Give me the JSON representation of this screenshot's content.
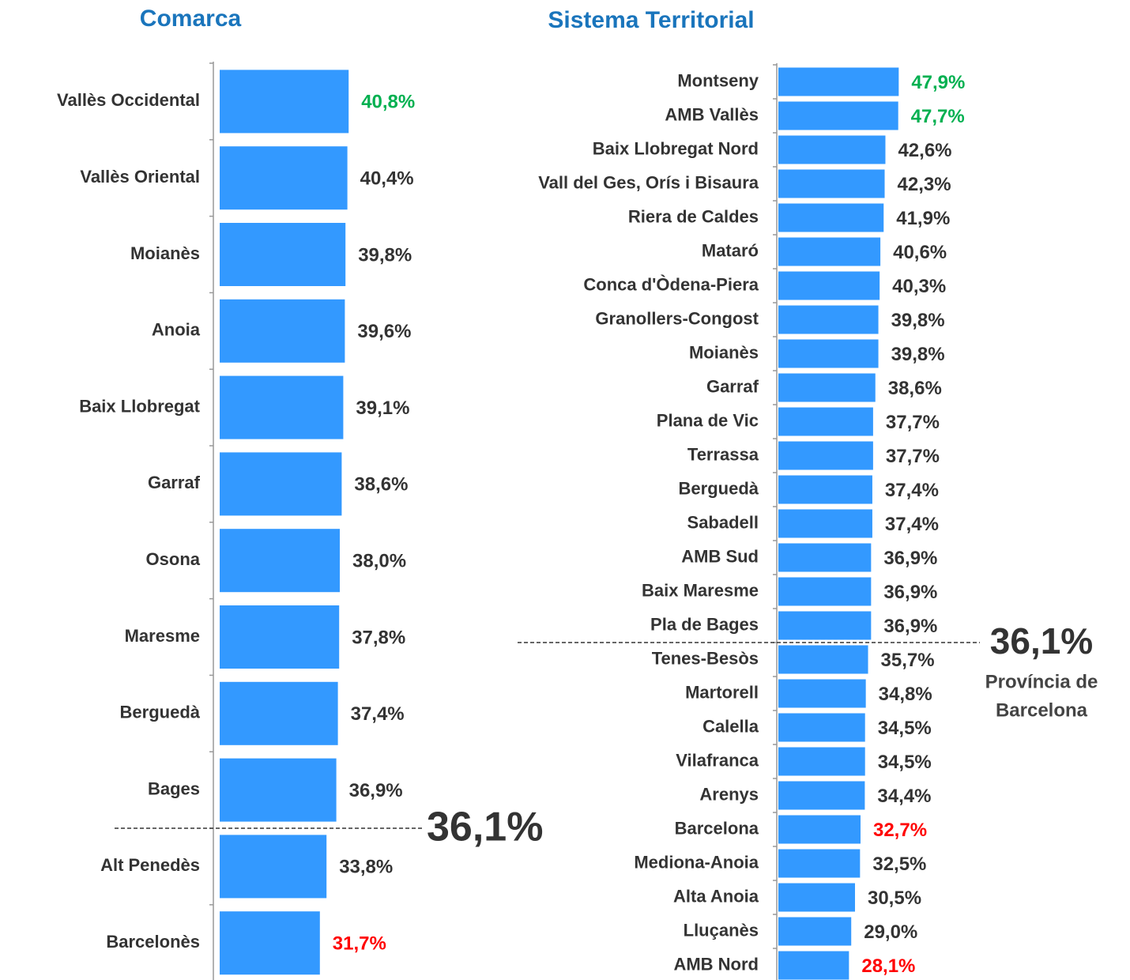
{
  "chart_data": [
    {
      "type": "bar",
      "orientation": "horizontal",
      "title": "Comarca",
      "color": "#3399ff",
      "xlim": [
        0,
        50
      ],
      "categories": [
        "Vallès Occidental",
        "Vallès Oriental",
        "Moianès",
        "Anoia",
        "Baix Llobregat",
        "Garraf",
        "Osona",
        "Maresme",
        "Berguedà",
        "Bages",
        "Alt Penedès",
        "Barcelonès"
      ],
      "values": [
        40.8,
        40.4,
        39.8,
        39.6,
        39.1,
        38.6,
        38.0,
        37.8,
        37.4,
        36.9,
        33.8,
        31.7
      ],
      "value_labels": [
        "40,8%",
        "40,4%",
        "39,8%",
        "39,6%",
        "39,1%",
        "38,6%",
        "38,0%",
        "37,8%",
        "37,4%",
        "36,9%",
        "33,8%",
        "31,7%"
      ],
      "label_colors": [
        "#00b050",
        "#333333",
        "#333333",
        "#333333",
        "#333333",
        "#333333",
        "#333333",
        "#333333",
        "#333333",
        "#333333",
        "#333333",
        "#ff0000"
      ],
      "reference": {
        "value": 36.1,
        "label": "36,1%"
      }
    },
    {
      "type": "bar",
      "orientation": "horizontal",
      "title": "Sistema Territorial",
      "color": "#3399ff",
      "xlim": [
        0,
        50
      ],
      "categories": [
        "Montseny",
        "AMB Vallès",
        "Baix Llobregat Nord",
        "Vall del Ges, Orís i Bisaura",
        "Riera de Caldes",
        "Mataró",
        "Conca d'Òdena-Piera",
        "Granollers-Congost",
        "Moianès",
        "Garraf",
        "Plana de Vic",
        "Terrassa",
        "Berguedà",
        "Sabadell",
        "AMB Sud",
        "Baix Maresme",
        "Pla de Bages",
        "Tenes-Besòs",
        "Martorell",
        "Calella",
        "Vilafranca",
        "Arenys",
        "Barcelona",
        "Mediona-Anoia",
        "Alta Anoia",
        "Lluçanès",
        "AMB Nord"
      ],
      "values": [
        47.9,
        47.7,
        42.6,
        42.3,
        41.9,
        40.6,
        40.3,
        39.8,
        39.8,
        38.6,
        37.7,
        37.7,
        37.4,
        37.4,
        36.9,
        36.9,
        36.9,
        35.7,
        34.8,
        34.5,
        34.5,
        34.4,
        32.7,
        32.5,
        30.5,
        29.0,
        28.1
      ],
      "value_labels": [
        "47,9%",
        "47,7%",
        "42,6%",
        "42,3%",
        "41,9%",
        "40,6%",
        "40,3%",
        "39,8%",
        "39,8%",
        "38,6%",
        "37,7%",
        "37,7%",
        "37,4%",
        "37,4%",
        "36,9%",
        "36,9%",
        "36,9%",
        "35,7%",
        "34,8%",
        "34,5%",
        "34,5%",
        "34,4%",
        "32,7%",
        "32,5%",
        "30,5%",
        "29,0%",
        "28,1%"
      ],
      "label_colors": [
        "#00b050",
        "#00b050",
        "#333333",
        "#333333",
        "#333333",
        "#333333",
        "#333333",
        "#333333",
        "#333333",
        "#333333",
        "#333333",
        "#333333",
        "#333333",
        "#333333",
        "#333333",
        "#333333",
        "#333333",
        "#333333",
        "#333333",
        "#333333",
        "#333333",
        "#333333",
        "#ff0000",
        "#333333",
        "#333333",
        "#333333",
        "#ff0000"
      ],
      "reference": {
        "value": 36.1,
        "label": "36,1%",
        "note": [
          "Província de",
          "Barcelona"
        ]
      }
    }
  ]
}
